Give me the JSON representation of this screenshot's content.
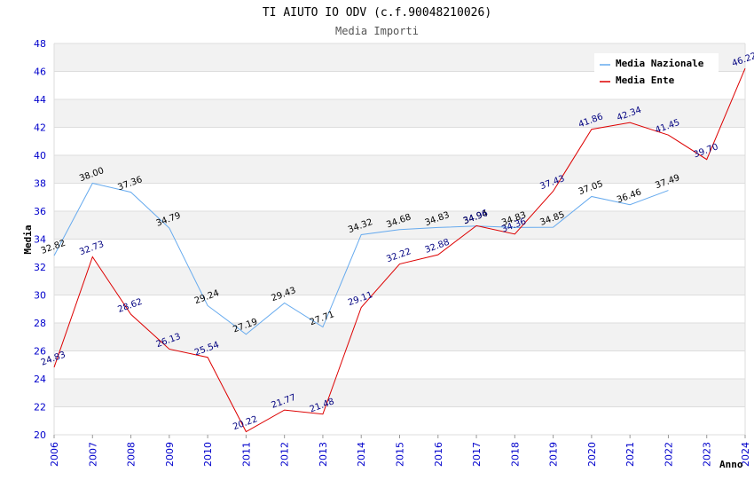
{
  "chart_data": {
    "type": "line",
    "title": "TI AIUTO IO ODV (c.f.90048210026)",
    "subtitle": "Media Importi",
    "xlabel": "Anno",
    "ylabel": "Media",
    "ylim": [
      20,
      48
    ],
    "yticks": [
      "20",
      "22",
      "24",
      "26",
      "28",
      "30",
      "32",
      "34",
      "36",
      "38",
      "40",
      "42",
      "44",
      "46",
      "48"
    ],
    "categories": [
      "2006",
      "2007",
      "2008",
      "2009",
      "2010",
      "2011",
      "2012",
      "2013",
      "2014",
      "2015",
      "2016",
      "2017",
      "2018",
      "2019",
      "2020",
      "2021",
      "2022",
      "2023",
      "2024"
    ],
    "legend_position": "top-right",
    "series": [
      {
        "name": "Media Nazionale",
        "color": "#66aaee",
        "label_color": "#000000",
        "values": [
          32.82,
          38.0,
          37.36,
          34.79,
          29.24,
          27.19,
          29.43,
          27.71,
          34.32,
          34.68,
          34.83,
          34.94,
          34.83,
          34.85,
          37.05,
          36.46,
          37.49,
          null,
          null
        ],
        "labels": [
          "32.82",
          "38.00",
          "37.36",
          "34.79",
          "29.24",
          "27.19",
          "29.43",
          "27.71",
          "34.32",
          "34.68",
          "34.83",
          "34.94",
          "34.83",
          "34.85",
          "37.05",
          "36.46",
          "37.49",
          null,
          null
        ]
      },
      {
        "name": "Media Ente",
        "color": "#dd0000",
        "label_color": "#000080",
        "values": [
          24.83,
          32.73,
          28.62,
          26.13,
          25.54,
          20.22,
          21.77,
          21.48,
          29.11,
          32.22,
          32.88,
          34.96,
          34.36,
          37.43,
          41.86,
          42.34,
          41.45,
          39.7,
          46.22
        ],
        "labels": [
          "24.83",
          "32.73",
          "28.62",
          "26.13",
          "25.54",
          "20.22",
          "21.77",
          "21.48",
          "29.11",
          "32.22",
          "32.88",
          "34.96",
          "34.36",
          "37.43",
          "41.86",
          "42.34",
          "41.45",
          "39.70",
          "46.22"
        ]
      }
    ]
  }
}
